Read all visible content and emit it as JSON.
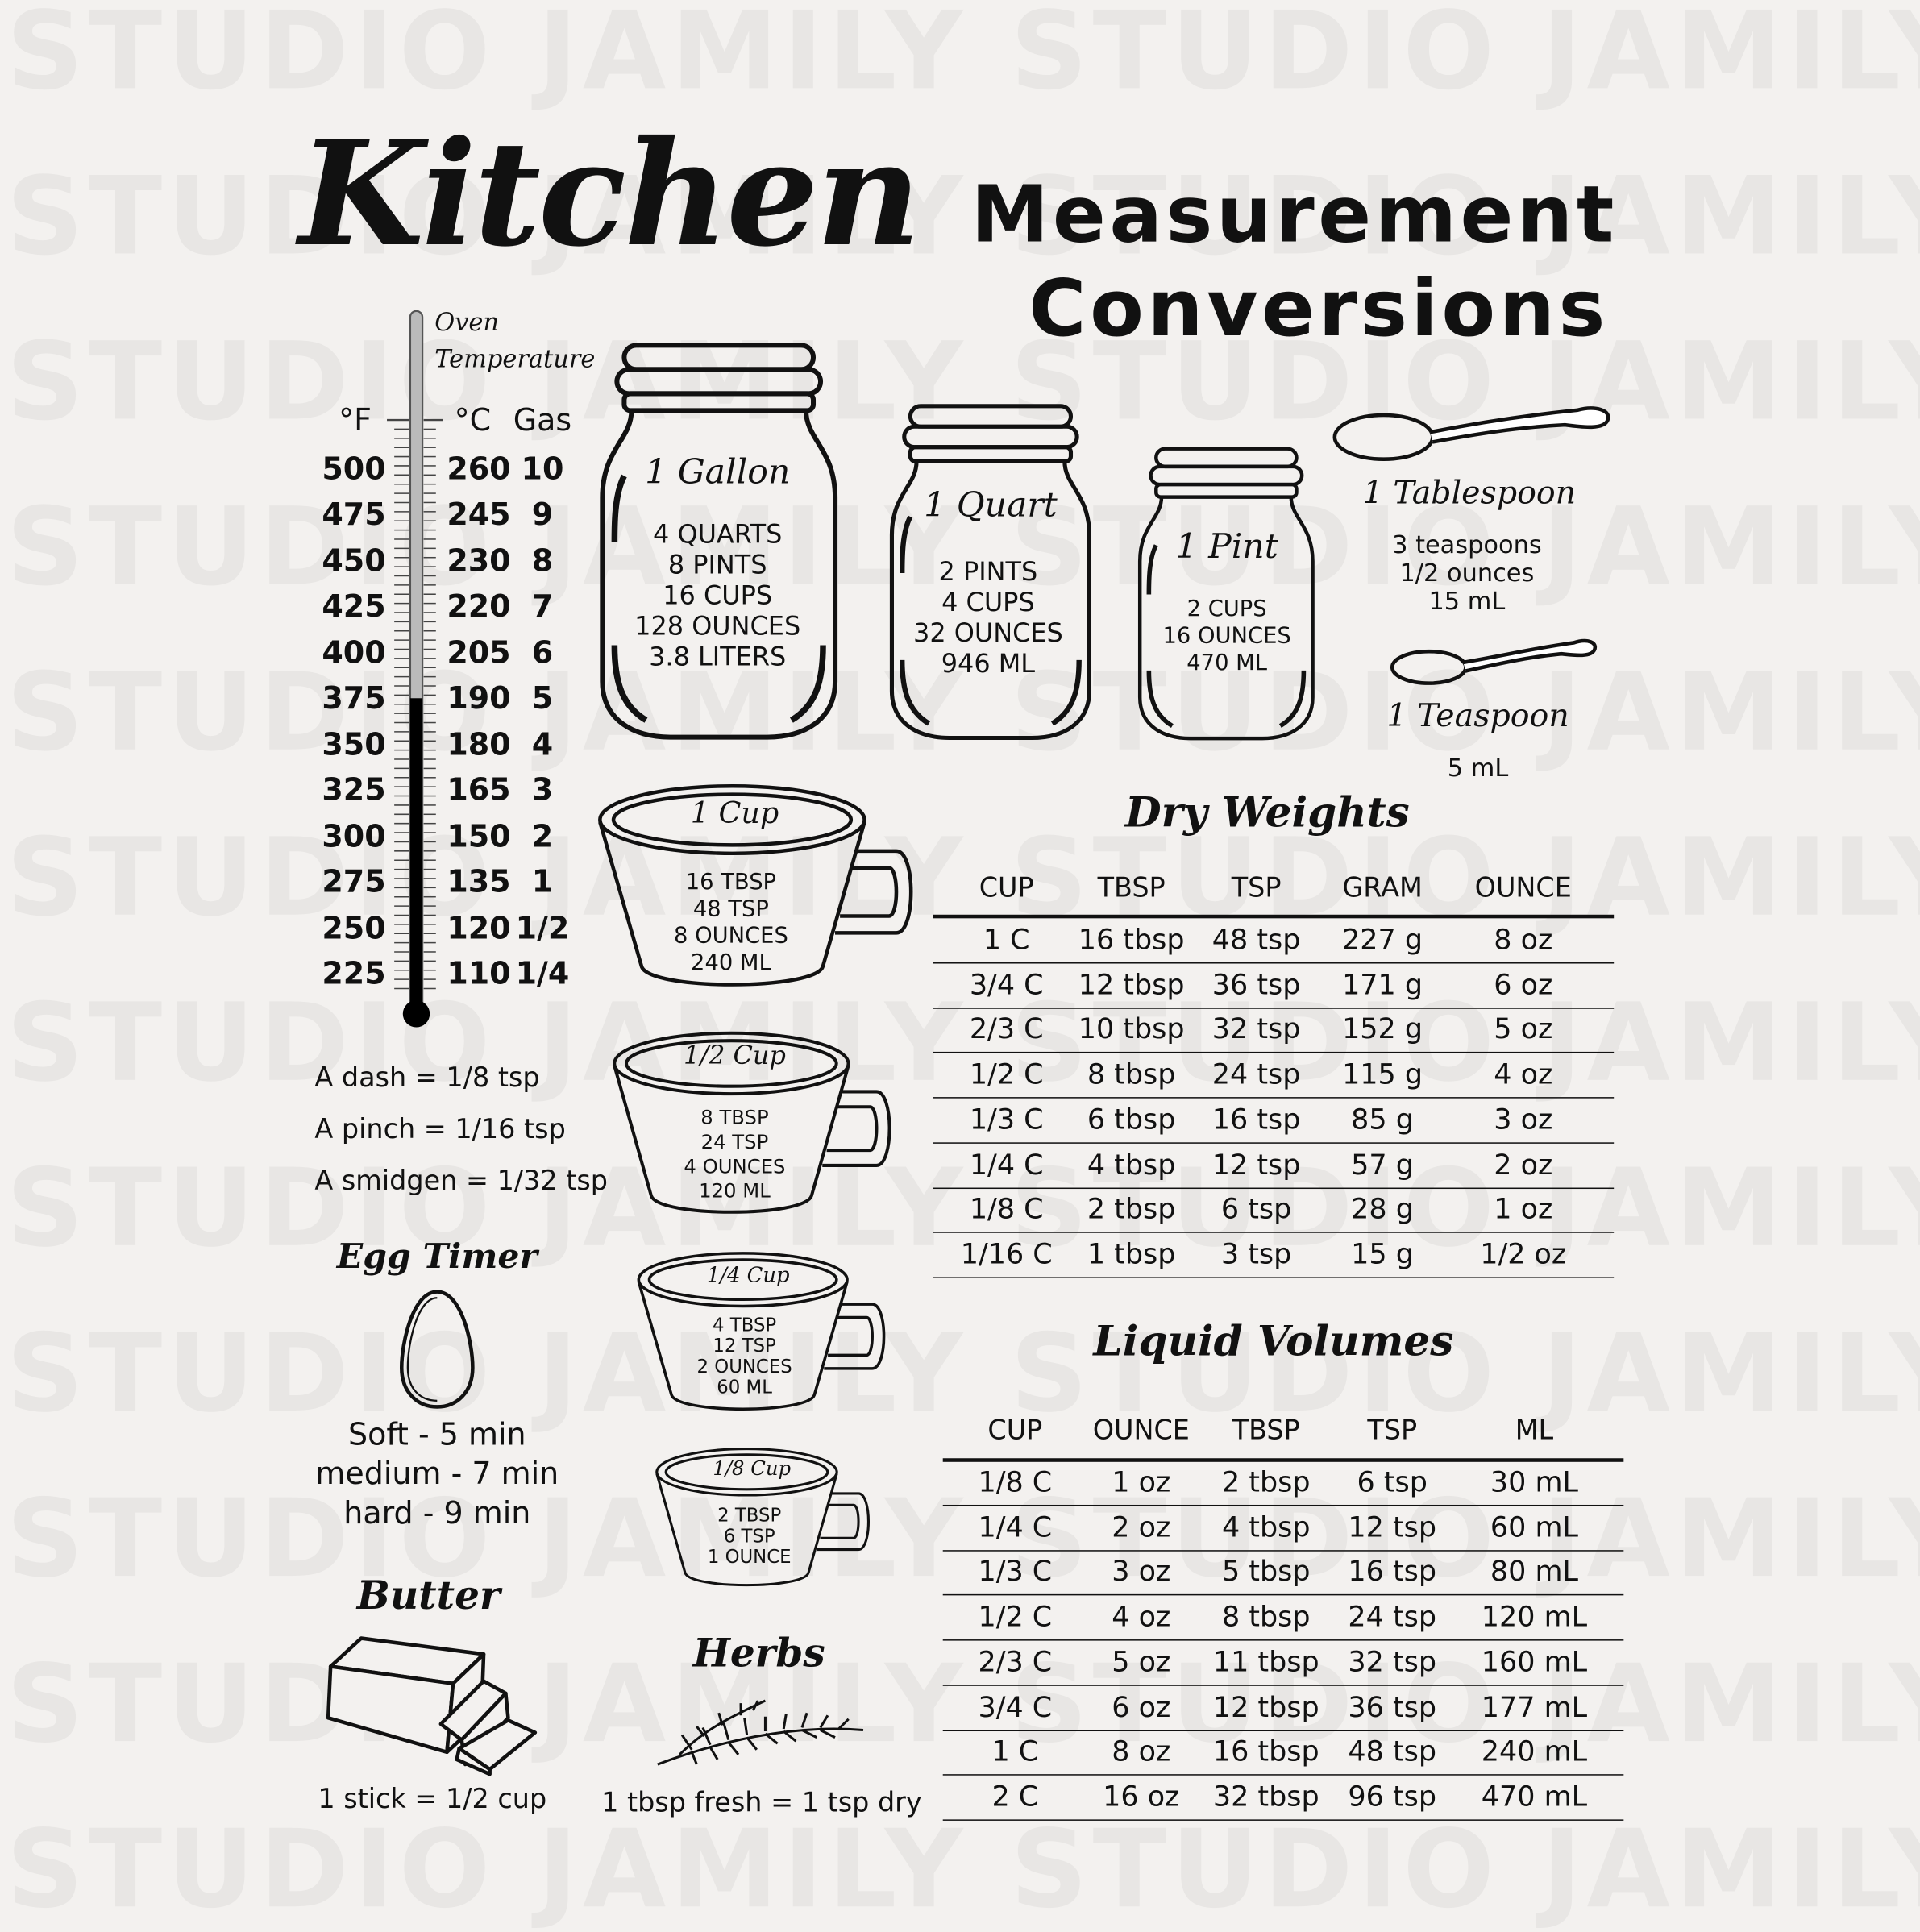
{
  "watermark": "STUDIO JAMILY STUDIO JAMILY",
  "title": {
    "script": "Kitchen",
    "line1": "Measurement",
    "line2": "Conversions"
  },
  "oven": {
    "title_line1": "Oven",
    "title_line2": "Temperature",
    "headers": {
      "f": "°F",
      "c": "°C",
      "gas": "Gas"
    },
    "rows": [
      {
        "f": "500",
        "c": "260",
        "gas": "10"
      },
      {
        "f": "475",
        "c": "245",
        "gas": "9"
      },
      {
        "f": "450",
        "c": "230",
        "gas": "8"
      },
      {
        "f": "425",
        "c": "220",
        "gas": "7"
      },
      {
        "f": "400",
        "c": "205",
        "gas": "6"
      },
      {
        "f": "375",
        "c": "190",
        "gas": "5"
      },
      {
        "f": "350",
        "c": "180",
        "gas": "4"
      },
      {
        "f": "325",
        "c": "165",
        "gas": "3"
      },
      {
        "f": "300",
        "c": "150",
        "gas": "2"
      },
      {
        "f": "275",
        "c": "135",
        "gas": "1"
      },
      {
        "f": "250",
        "c": "120",
        "gas": "1/2"
      },
      {
        "f": "225",
        "c": "110",
        "gas": "1/4"
      }
    ],
    "thermometer_level_f": 375
  },
  "jars": [
    {
      "title": "1 Gallon",
      "lines": [
        "4 QUARTS",
        "8 PINTS",
        "16 CUPS",
        "128 OUNCES",
        "3.8 LITERS"
      ]
    },
    {
      "title": "1 Quart",
      "lines": [
        "2 PINTS",
        "4 CUPS",
        "32 OUNCES",
        "946 ML"
      ]
    },
    {
      "title": "1 Pint",
      "lines": [
        "2 CUPS",
        "16 OUNCES",
        "470 ML"
      ]
    }
  ],
  "spoons": [
    {
      "title": "1 Tablespoon",
      "lines": [
        "3 teaspoons",
        "1/2 ounces",
        "15 mL"
      ]
    },
    {
      "title": "1 Teaspoon",
      "lines": [
        "5 mL"
      ]
    }
  ],
  "cups": [
    {
      "title": "1 Cup",
      "lines": [
        "16 TBSP",
        "48 TSP",
        "8 OUNCES",
        "240 ML"
      ]
    },
    {
      "title": "1/2 Cup",
      "lines": [
        "8 TBSP",
        "24 TSP",
        "4 OUNCES",
        "120 ML"
      ]
    },
    {
      "title": "1/4 Cup",
      "lines": [
        "4 TBSP",
        "12 TSP",
        "2 OUNCES",
        "60 ML"
      ]
    },
    {
      "title": "1/8 Cup",
      "lines": [
        "2 TBSP",
        "6 TSP",
        "1 OUNCE"
      ]
    }
  ],
  "small_measures": [
    "A dash = 1/8 tsp",
    "A pinch = 1/16 tsp",
    "A smidgen = 1/32 tsp"
  ],
  "egg_timer": {
    "title": "Egg Timer",
    "lines": [
      "Soft - 5 min",
      "medium - 7 min",
      "hard - 9 min"
    ]
  },
  "butter": {
    "title": "Butter",
    "text": "1 stick = 1/2 cup"
  },
  "herbs": {
    "title": "Herbs",
    "text": "1 tbsp fresh = 1 tsp dry"
  },
  "dry_weights": {
    "title": "Dry Weights",
    "columns": [
      "CUP",
      "TBSP",
      "TSP",
      "GRAM",
      "OUNCE"
    ],
    "rows": [
      [
        "1 C",
        "16 tbsp",
        "48 tsp",
        "227 g",
        "8 oz"
      ],
      [
        "3/4 C",
        "12 tbsp",
        "36 tsp",
        "171 g",
        "6 oz"
      ],
      [
        "2/3 C",
        "10 tbsp",
        "32 tsp",
        "152 g",
        "5 oz"
      ],
      [
        "1/2 C",
        "8 tbsp",
        "24 tsp",
        "115 g",
        "4 oz"
      ],
      [
        "1/3 C",
        "6 tbsp",
        "16 tsp",
        "85 g",
        "3 oz"
      ],
      [
        "1/4 C",
        "4 tbsp",
        "12 tsp",
        "57 g",
        "2 oz"
      ],
      [
        "1/8 C",
        "2 tbsp",
        "6 tsp",
        "28 g",
        "1 oz"
      ],
      [
        "1/16 C",
        "1 tbsp",
        "3 tsp",
        "15 g",
        "1/2 oz"
      ]
    ]
  },
  "liquid_volumes": {
    "title": "Liquid Volumes",
    "columns": [
      "CUP",
      "OUNCE",
      "TBSP",
      "TSP",
      "ML"
    ],
    "rows": [
      [
        "1/8 C",
        "1 oz",
        "2 tbsp",
        "6 tsp",
        "30 mL"
      ],
      [
        "1/4 C",
        "2 oz",
        "4 tbsp",
        "12 tsp",
        "60 mL"
      ],
      [
        "1/3 C",
        "3 oz",
        "5 tbsp",
        "16 tsp",
        "80 mL"
      ],
      [
        "1/2 C",
        "4 oz",
        "8 tbsp",
        "24 tsp",
        "120 mL"
      ],
      [
        "2/3 C",
        "5 oz",
        "11 tbsp",
        "32 tsp",
        "160 mL"
      ],
      [
        "3/4 C",
        "6 oz",
        "12 tbsp",
        "36 tsp",
        "177 mL"
      ],
      [
        "1 C",
        "8 oz",
        "16 tbsp",
        "48 tsp",
        "240 mL"
      ],
      [
        "2 C",
        "16 oz",
        "32 tbsp",
        "96 tsp",
        "470 mL"
      ]
    ]
  }
}
